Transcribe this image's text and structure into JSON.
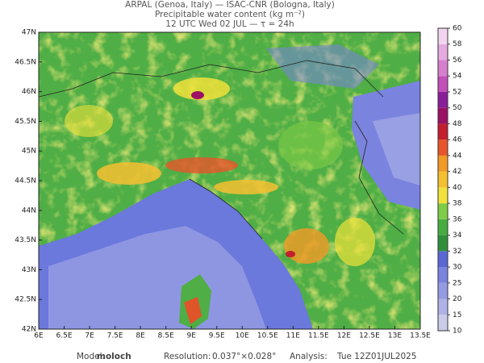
{
  "header": {
    "line1": "ARPAL (Genoa, Italy)  —  ISAC-CNR (Bologna, Italy)",
    "line2": "Precipitable water content (kg m⁻²)",
    "line3": "12 UTC Wed 02 JUL  —  τ = 24h"
  },
  "map": {
    "lat_labels": [
      "47N",
      "46.5N",
      "46N",
      "45.5N",
      "45N",
      "44.5N",
      "44N",
      "43.5N",
      "43N",
      "42.5N",
      "42N"
    ],
    "lon_labels": [
      "6E",
      "6.5E",
      "7E",
      "7.5E",
      "8E",
      "8.5E",
      "9E",
      "9.5E",
      "10E",
      "10.5E",
      "11E",
      "11.5E",
      "12E",
      "12.5E",
      "13E",
      "13.5E"
    ]
  },
  "colorbar": {
    "levels": [
      10,
      15,
      20,
      25,
      30,
      32,
      34,
      36,
      38,
      40,
      42,
      44,
      46,
      48,
      50,
      52,
      54,
      56,
      58,
      60
    ],
    "colors": [
      "#c9cbe8",
      "#aeb2e6",
      "#959be3",
      "#7a83de",
      "#5a68d4",
      "#2f8f3a",
      "#46ad3f",
      "#7fcc46",
      "#f0e23a",
      "#f5c030",
      "#f29a26",
      "#e7552a",
      "#c41e2e",
      "#9c1166",
      "#8a1e9a",
      "#c34fb8",
      "#d77fcf",
      "#e5aadf",
      "#f1d5ee"
    ]
  },
  "footer": {
    "model_label": "Model:",
    "model": "moloch",
    "resolution_label": "Resolution:",
    "resolution": "0.037°×0.028°",
    "analysis_label": "Analysis:",
    "analysis": "Tue 12Z01JUL2025"
  }
}
